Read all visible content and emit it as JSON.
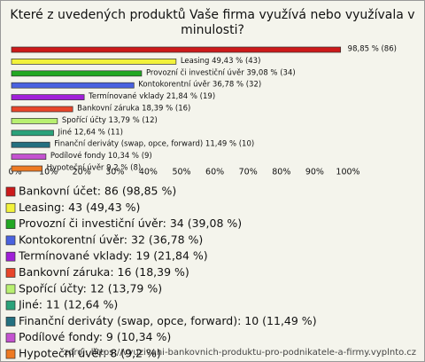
{
  "chart_data": {
    "type": "bar",
    "orientation": "horizontal",
    "title_lines": [
      "Které z uvedených produktů Vaše firma využívá nebo využívala v",
      "minulosti?"
    ],
    "categories": [
      "Bankovní účet",
      "Leasing",
      "Provozní či investiční úvěr",
      "Kontokorentní úvěr",
      "Termínované vklady",
      "Bankovní záruka",
      "Spořící účty",
      "Jiné",
      "Finanční deriváty (swap, opce, forward)",
      "Podílové fondy",
      "Hypoteční úvěr"
    ],
    "values": [
      98.85,
      49.43,
      39.08,
      36.78,
      21.84,
      18.39,
      13.79,
      12.64,
      11.49,
      10.34,
      9.2
    ],
    "value_labels": [
      "98,85 % (86)",
      "Leasing 49,43 % (43)",
      "Provozní či investiční úvěr 39,08 % (34)",
      "Kontokorentní úvěr 36,78 % (32)",
      "Termínované vklady 21,84 % (19)",
      "Bankovní záruka 18,39 % (16)",
      "Spořící účty 13,79 % (12)",
      "Jiné 12,64 % (11)",
      "Finanční deriváty (swap, opce, forward) 11,49 % (10)",
      "Podílové fondy 10,34 % (9)",
      "Hypoteční úvěr 9,2 % (8)"
    ],
    "legend": [
      "Bankovní účet: 86 (98,85 %)",
      "Leasing: 43 (49,43 %)",
      "Provozní či investiční úvěr: 34 (39,08 %)",
      "Kontokorentní úvěr: 32 (36,78 %)",
      "Termínované vklady: 19 (21,84 %)",
      "Bankovní záruka: 16 (18,39 %)",
      "Spořící účty: 12 (13,79 %)",
      "Jiné: 11 (12,64 %)",
      "Finanční deriváty (swap, opce, forward): 10 (11,49 %)",
      "Podílové fondy: 9 (10,34 %)",
      "Hypoteční úvěr: 8 (9,2 %)"
    ],
    "colors": [
      "#cc1a1a",
      "#f2f23a",
      "#22a822",
      "#4a62e0",
      "#a020d8",
      "#e8452a",
      "#b8f070",
      "#2aa27a",
      "#237080",
      "#c453d0",
      "#ee7a22"
    ],
    "xlim": [
      0,
      100
    ],
    "xticks": [
      {
        "value": 0,
        "label": "0%"
      },
      {
        "value": 10,
        "label": "10%"
      },
      {
        "value": 20,
        "label": "20%"
      },
      {
        "value": 30,
        "label": "30%"
      },
      {
        "value": 40,
        "label": "40%"
      },
      {
        "value": 50,
        "label": "50%"
      },
      {
        "value": 60,
        "label": "60%"
      },
      {
        "value": 70,
        "label": "70%"
      },
      {
        "value": 80,
        "label": "80%"
      },
      {
        "value": 90,
        "label": "90%"
      },
      {
        "value": 100,
        "label": "100%"
      }
    ],
    "source": "zdroj: https://vyuzivani-bankovnich-produktu-pro-podnikatele-a-firmy.vyplnto.cz"
  }
}
